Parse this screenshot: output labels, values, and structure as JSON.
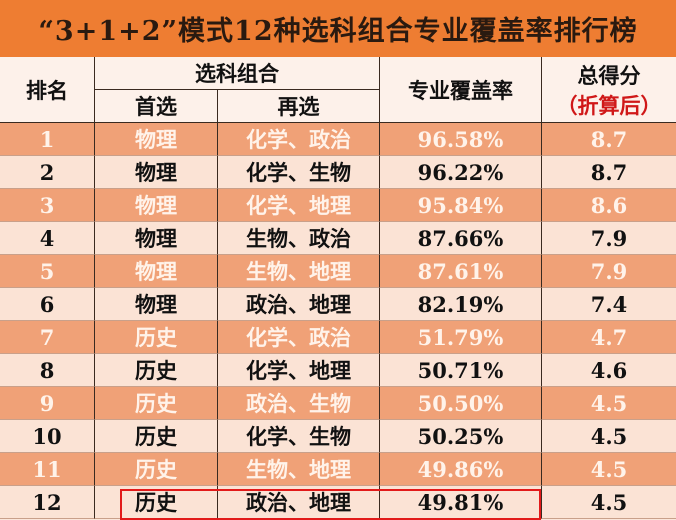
{
  "title": "“3+1+2”模式12种选科组合专业覆盖率排行榜",
  "headers": {
    "rank": "排名",
    "combo": "选科组合",
    "first": "首选",
    "second": "再选",
    "coverage": "专业覆盖率",
    "score": "总得分",
    "score_note": "（折算后）"
  },
  "rows": [
    {
      "rank": "1",
      "first": "物理",
      "second": "化学、政治",
      "coverage": "96.58%",
      "score": "8.7"
    },
    {
      "rank": "2",
      "first": "物理",
      "second": "化学、生物",
      "coverage": "96.22%",
      "score": "8.7"
    },
    {
      "rank": "3",
      "first": "物理",
      "second": "化学、地理",
      "coverage": "95.84%",
      "score": "8.6"
    },
    {
      "rank": "4",
      "first": "物理",
      "second": "生物、政治",
      "coverage": "87.66%",
      "score": "7.9"
    },
    {
      "rank": "5",
      "first": "物理",
      "second": "生物、地理",
      "coverage": "87.61%",
      "score": "7.9"
    },
    {
      "rank": "6",
      "first": "物理",
      "second": "政治、地理",
      "coverage": "82.19%",
      "score": "7.4"
    },
    {
      "rank": "7",
      "first": "历史",
      "second": "化学、政治",
      "coverage": "51.79%",
      "score": "4.7"
    },
    {
      "rank": "8",
      "first": "历史",
      "second": "化学、地理",
      "coverage": "50.71%",
      "score": "4.6"
    },
    {
      "rank": "9",
      "first": "历史",
      "second": "政治、生物",
      "coverage": "50.50%",
      "score": "4.5"
    },
    {
      "rank": "10",
      "first": "历史",
      "second": "化学、生物",
      "coverage": "50.25%",
      "score": "4.5"
    },
    {
      "rank": "11",
      "first": "历史",
      "second": "生物、地理",
      "coverage": "49.86%",
      "score": "4.5"
    },
    {
      "rank": "12",
      "first": "历史",
      "second": "政治、地理",
      "coverage": "49.81%",
      "score": "4.5"
    }
  ],
  "colors": {
    "title_bg": "#ee7d32",
    "odd_row": "#f0a177",
    "even_row": "#fbe3d5",
    "highlight": "#e21a1a"
  },
  "highlighted_rank": "12"
}
